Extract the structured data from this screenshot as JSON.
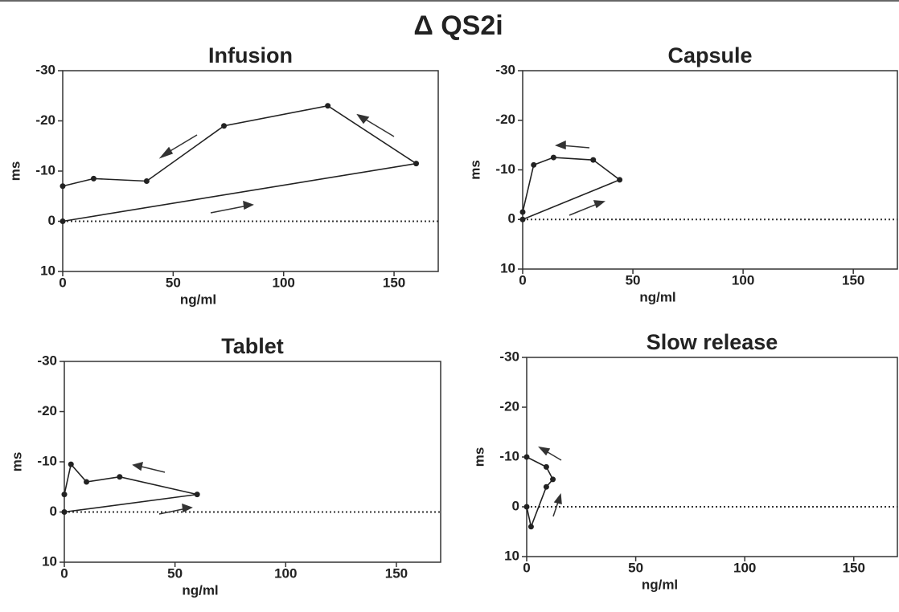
{
  "title": "Δ QS2i",
  "chart_data": [
    {
      "type": "line",
      "title": "Infusion",
      "xlabel": "ng/ml",
      "ylabel": "ms",
      "series": [
        {
          "color": "#222222",
          "x": [
            0,
            160,
            120,
            73,
            38,
            14,
            0
          ],
          "values": [
            0,
            -11.5,
            -23,
            -19,
            -8,
            -8.5,
            -7
          ]
        }
      ],
      "xlim": [
        0,
        170
      ],
      "ylim": [
        10,
        -30
      ],
      "xticks": [
        0,
        50,
        100,
        150
      ],
      "yticks": [
        -30,
        -20,
        -10,
        0,
        10
      ],
      "zero_line": "dotted"
    },
    {
      "type": "line",
      "title": "Capsule",
      "xlabel": "ng/ml",
      "ylabel": "ms",
      "series": [
        {
          "color": "#222222",
          "x": [
            0,
            44,
            32,
            14,
            5,
            0
          ],
          "values": [
            0,
            -8,
            -12,
            -12.5,
            -11,
            -1.5
          ]
        }
      ],
      "xlim": [
        0,
        170
      ],
      "ylim": [
        10,
        -30
      ],
      "xticks": [
        0,
        50,
        100,
        150
      ],
      "yticks": [
        -30,
        -20,
        -10,
        0,
        10
      ],
      "zero_line": "dotted"
    },
    {
      "type": "line",
      "title": "Tablet",
      "xlabel": "ng/ml",
      "ylabel": "ms",
      "series": [
        {
          "color": "#222222",
          "x": [
            0,
            60,
            25,
            10,
            3,
            0
          ],
          "values": [
            0,
            -3.5,
            -7,
            -6,
            -9.5,
            -3.5
          ]
        }
      ],
      "xlim": [
        0,
        170
      ],
      "ylim": [
        10,
        -30
      ],
      "xticks": [
        0,
        50,
        100,
        150
      ],
      "yticks": [
        -30,
        -20,
        -10,
        0,
        10
      ],
      "zero_line": "dotted"
    },
    {
      "type": "line",
      "title": "Slow release",
      "xlabel": "ng/ml",
      "ylabel": "ms",
      "series": [
        {
          "color": "#222222",
          "x": [
            0,
            2,
            9,
            12,
            9,
            0
          ],
          "values": [
            0,
            4,
            -4,
            -5.5,
            -8,
            -10
          ]
        }
      ],
      "xlim": [
        0,
        170
      ],
      "ylim": [
        10,
        -30
      ],
      "xticks": [
        0,
        50,
        100,
        150
      ],
      "yticks": [
        -30,
        -20,
        -10,
        0,
        10
      ],
      "zero_line": "dotted"
    }
  ]
}
